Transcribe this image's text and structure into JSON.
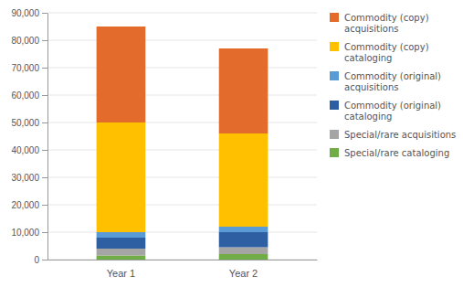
{
  "chart_data": {
    "type": "bar",
    "stacked": true,
    "categories": [
      "Year 1",
      "Year 2"
    ],
    "series": [
      {
        "name": "Special/rare cataloging",
        "color": "#70ad47",
        "values": [
          1500,
          2000
        ]
      },
      {
        "name": "Special/rare acquisitions",
        "color": "#a5a5a5",
        "values": [
          2500,
          2500
        ]
      },
      {
        "name": "Commodity (original)\ncataloging",
        "color": "#2e5fa3",
        "values": [
          4000,
          5500
        ]
      },
      {
        "name": "Commodity (original)\nacquisitions",
        "color": "#5b9bd5",
        "values": [
          2000,
          2000
        ]
      },
      {
        "name": "Commodity (copy)\ncataloging",
        "color": "#ffc000",
        "values": [
          40000,
          34000
        ]
      },
      {
        "name": "Commodity (copy)\nacquisitions",
        "color": "#e36c2c",
        "values": [
          35000,
          31000
        ]
      }
    ],
    "ylim": [
      0,
      90000
    ],
    "yticks": [
      0,
      {
        "value": 10000,
        "label": "10,000"
      },
      {
        "value": 20000,
        "label": "20,000"
      },
      {
        "value": 30000,
        "label": "30,000"
      },
      {
        "value": 40000,
        "label": "40,000"
      },
      {
        "value": 50000,
        "label": "50,000"
      },
      {
        "value": 60000,
        "label": "60,000"
      },
      {
        "value": 70000,
        "label": "70,000"
      },
      {
        "value": 80000,
        "label": "80,000"
      },
      {
        "value": 90000,
        "label": "90,000"
      }
    ],
    "grid": true,
    "legend": "right"
  }
}
